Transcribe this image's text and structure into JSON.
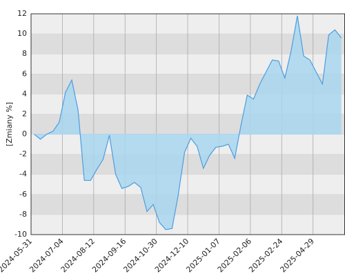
{
  "chart_data": {
    "type": "area",
    "y_label": "[Zmiany %]",
    "color": "#4a9de0",
    "fill": "#a9d6ee",
    "band_colors": [
      "#eeeeee",
      "#dddddd"
    ],
    "grid": true,
    "x": [
      0,
      1,
      2,
      3,
      4,
      5,
      6,
      7,
      8,
      9,
      10,
      11,
      12,
      13,
      14,
      15,
      16,
      17,
      18,
      19,
      20,
      21,
      22,
      23,
      24,
      25,
      26,
      27,
      28,
      29,
      30,
      31,
      32,
      33,
      34,
      35,
      36,
      37,
      38,
      39,
      40,
      41,
      42,
      43,
      44,
      45,
      46,
      47,
      48,
      49
    ],
    "values": [
      0,
      -0.5,
      0,
      0.3,
      1.2,
      4.2,
      5.4,
      2.4,
      -4.6,
      -4.6,
      -3.5,
      -2.5,
      -0.1,
      -4,
      -5.4,
      -5.2,
      -4.8,
      -5.3,
      -7.7,
      -7,
      -8.8,
      -9.5,
      -9.4,
      -6,
      -1.8,
      -0.4,
      -1.2,
      -3.4,
      -2.1,
      -1.3,
      -1.2,
      -1,
      -2.4,
      0.9,
      3.9,
      3.5,
      5,
      6.2,
      7.4,
      7.3,
      5.6,
      8.3,
      11.8,
      7.8,
      7.4,
      6.2,
      5,
      9.9,
      10.4,
      9.6
    ],
    "xlim": [
      -0.5,
      49.6
    ],
    "xticks": [
      {
        "value": -0.5,
        "label": "2024-05-31"
      },
      {
        "value": 4.5,
        "label": "2024-07-04"
      },
      {
        "value": 9.5,
        "label": "2024-08-12"
      },
      {
        "value": 14.5,
        "label": "2024-09-16"
      },
      {
        "value": 19.5,
        "label": "2024-10-30"
      },
      {
        "value": 24.5,
        "label": "2024-12-10"
      },
      {
        "value": 29.5,
        "label": "2025-01-07"
      },
      {
        "value": 34.5,
        "label": "2025-02-06"
      },
      {
        "value": 39.5,
        "label": "2025-02-24"
      },
      {
        "value": 44.5,
        "label": "2025-04-29"
      }
    ],
    "ylim": [
      -10,
      12
    ],
    "yticks": [
      -10,
      -8,
      -6,
      -4,
      -2,
      0,
      2,
      4,
      6,
      8,
      10,
      12
    ]
  }
}
